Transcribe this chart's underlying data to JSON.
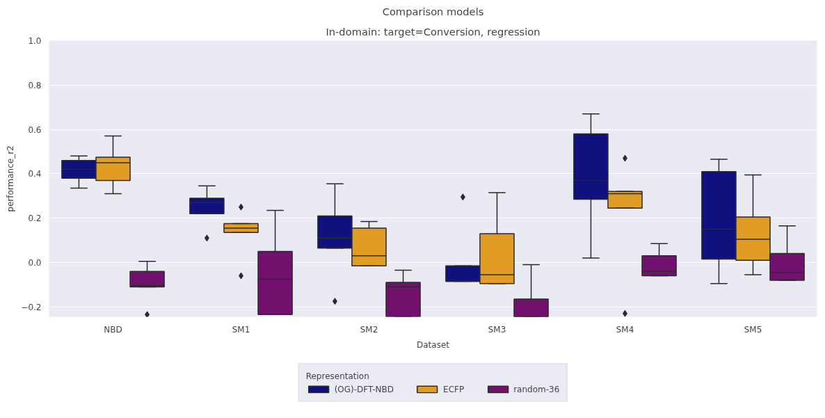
{
  "chart_data": {
    "type": "box",
    "title": "Comparison models",
    "subtitle": "In-domain: target=Conversion, regression",
    "xlabel": "Dataset",
    "ylabel": "performance_r2",
    "legend_title": "Representation",
    "legend": "bottom",
    "grid": "y",
    "categories": [
      "NBD",
      "SM1",
      "SM2",
      "SM3",
      "SM4",
      "SM5"
    ],
    "ylim": [
      -0.245,
      1.0
    ],
    "yticks": [
      {
        "value": -0.2,
        "label": "−0.2"
      },
      {
        "value": 0.0,
        "label": "0.0"
      },
      {
        "value": 0.2,
        "label": "0.2"
      },
      {
        "value": 0.4,
        "label": "0.4"
      },
      {
        "value": 0.6,
        "label": "0.6"
      },
      {
        "value": 0.8,
        "label": "0.8"
      },
      {
        "value": 1.0,
        "label": "1.0"
      }
    ],
    "series": [
      {
        "name": "(OG)-DFT-NBD",
        "color": "#10107f",
        "boxes": [
          {
            "low": 0.335,
            "q1": 0.38,
            "median": 0.42,
            "q3": 0.46,
            "high": 0.48
          },
          {
            "low": 0.22,
            "q1": 0.22,
            "median": 0.27,
            "q3": 0.29,
            "high": 0.345,
            "outliers": [
              0.11
            ]
          },
          {
            "low": 0.065,
            "q1": 0.065,
            "median": 0.11,
            "q3": 0.21,
            "high": 0.355,
            "outliers": [
              -0.175
            ]
          },
          {
            "low": -0.085,
            "q1": -0.085,
            "median": -0.085,
            "q3": -0.015,
            "high": -0.015,
            "outliers": [
              0.295
            ]
          },
          {
            "low": 0.02,
            "q1": 0.285,
            "median": 0.37,
            "q3": 0.58,
            "high": 0.67
          },
          {
            "low": -0.095,
            "q1": 0.015,
            "median": 0.15,
            "q3": 0.41,
            "high": 0.465
          }
        ]
      },
      {
        "name": "ECFP",
        "color": "#e09c24",
        "boxes": [
          {
            "low": 0.31,
            "q1": 0.37,
            "median": 0.45,
            "q3": 0.475,
            "high": 0.57
          },
          {
            "low": 0.135,
            "q1": 0.135,
            "median": 0.155,
            "q3": 0.175,
            "high": 0.175,
            "outliers": [
              0.25,
              -0.06
            ]
          },
          {
            "low": -0.015,
            "q1": -0.015,
            "median": 0.03,
            "q3": 0.155,
            "high": 0.185
          },
          {
            "low": -0.095,
            "q1": -0.095,
            "median": -0.055,
            "q3": 0.13,
            "high": 0.315
          },
          {
            "low": 0.245,
            "q1": 0.245,
            "median": 0.31,
            "q3": 0.32,
            "high": 0.32,
            "outliers": [
              0.47,
              -0.23
            ]
          },
          {
            "low": -0.055,
            "q1": 0.01,
            "median": 0.105,
            "q3": 0.205,
            "high": 0.395
          }
        ]
      },
      {
        "name": "random-36",
        "color": "#72106e",
        "boxes": [
          {
            "low": -0.11,
            "q1": -0.11,
            "median": -0.105,
            "q3": -0.04,
            "high": 0.005,
            "outliers": [
              -0.235
            ]
          },
          {
            "low": -0.235,
            "q1": -0.235,
            "median": -0.075,
            "q3": 0.05,
            "high": 0.235
          },
          {
            "low": -0.245,
            "q1": -0.245,
            "median": -0.11,
            "q3": -0.09,
            "high": -0.035
          },
          {
            "low": -0.245,
            "q1": -0.245,
            "median": -0.245,
            "q3": -0.165,
            "high": -0.01
          },
          {
            "low": -0.06,
            "q1": -0.06,
            "median": -0.04,
            "q3": 0.03,
            "high": 0.085
          },
          {
            "low": -0.08,
            "q1": -0.08,
            "median": -0.045,
            "q3": 0.04,
            "high": 0.165
          }
        ]
      }
    ]
  }
}
